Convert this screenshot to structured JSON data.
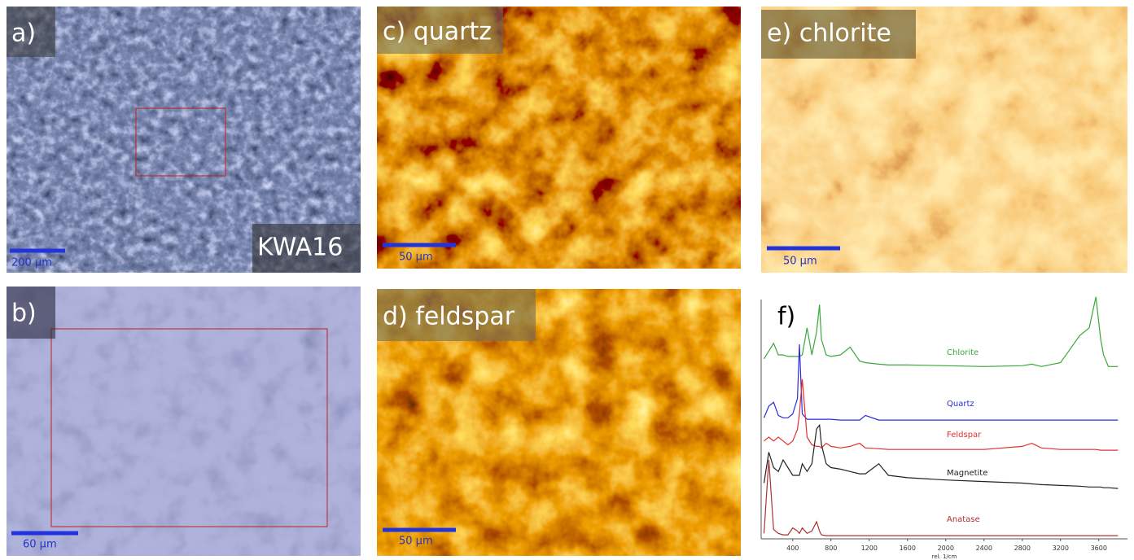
{
  "panels": [
    {
      "label": "a)",
      "sample": "KWA16",
      "scale_bar": "200 µm"
    },
    {
      "label": "b)",
      "scale_bar": "60 µm"
    },
    {
      "label": "c) quartz",
      "scale_bar": "50 µm"
    },
    {
      "label": "d) feldspar",
      "scale_bar": "50 µm"
    },
    {
      "label": "e) chlorite",
      "scale_bar": "50 µm"
    },
    {
      "label": "f)"
    }
  ],
  "chart_data": {
    "type": "line",
    "xlabel": "rel. 1/cm",
    "x": [
      100,
      150,
      200,
      250,
      300,
      350,
      400,
      450,
      470,
      500,
      550,
      600,
      650,
      680,
      700,
      750,
      800,
      900,
      1000,
      1100,
      1160,
      1300,
      1400,
      1600,
      2000,
      2400,
      2800,
      2900,
      3000,
      3200,
      3400,
      3500,
      3570,
      3620,
      3650,
      3700,
      3800
    ],
    "xlim": [
      70,
      3900
    ],
    "xticks": [
      400,
      800,
      1200,
      1600,
      2000,
      2400,
      2800,
      3200,
      3600
    ],
    "series": [
      {
        "name": "Chlorite",
        "color": "#3aa83a",
        "values": [
          0.15,
          0.25,
          0.35,
          0.2,
          0.2,
          0.18,
          0.18,
          0.18,
          0.18,
          0.2,
          0.55,
          0.2,
          0.5,
          0.85,
          0.4,
          0.2,
          0.18,
          0.2,
          0.3,
          0.12,
          0.1,
          0.08,
          0.07,
          0.07,
          0.06,
          0.05,
          0.06,
          0.08,
          0.05,
          0.1,
          0.45,
          0.55,
          0.95,
          0.4,
          0.2,
          0.05,
          0.05
        ]
      },
      {
        "name": "Quartz",
        "color": "#2b2bd8",
        "values": [
          0.05,
          0.2,
          0.25,
          0.08,
          0.05,
          0.05,
          0.1,
          0.3,
          1.0,
          0.1,
          0.03,
          0.03,
          0.03,
          0.03,
          0.03,
          0.03,
          0.03,
          0.02,
          0.02,
          0.02,
          0.08,
          0.02,
          0.02,
          0.02,
          0.02,
          0.02,
          0.02,
          0.02,
          0.02,
          0.02,
          0.02,
          0.02,
          0.02,
          0.02,
          0.02,
          0.02,
          0.02
        ]
      },
      {
        "name": "Feldspar",
        "color": "#e03030",
        "values": [
          0.15,
          0.2,
          0.15,
          0.2,
          0.15,
          0.1,
          0.15,
          0.3,
          0.5,
          0.95,
          0.2,
          0.1,
          0.08,
          0.08,
          0.06,
          0.12,
          0.08,
          0.06,
          0.08,
          0.12,
          0.06,
          0.05,
          0.04,
          0.04,
          0.04,
          0.04,
          0.08,
          0.12,
          0.06,
          0.04,
          0.04,
          0.04,
          0.04,
          0.03,
          0.03,
          0.03,
          0.03
        ]
      },
      {
        "name": "Magnetite",
        "color": "#222222",
        "values": [
          0.1,
          0.5,
          0.3,
          0.25,
          0.4,
          0.3,
          0.2,
          0.2,
          0.2,
          0.35,
          0.25,
          0.35,
          0.8,
          0.85,
          0.6,
          0.35,
          0.3,
          0.28,
          0.25,
          0.22,
          0.22,
          0.35,
          0.2,
          0.17,
          0.14,
          0.12,
          0.1,
          0.09,
          0.08,
          0.07,
          0.06,
          0.05,
          0.05,
          0.05,
          0.04,
          0.04,
          0.03
        ]
      },
      {
        "name": "Anatase",
        "color": "#a83232",
        "values": [
          0.05,
          1.0,
          0.1,
          0.05,
          0.03,
          0.03,
          0.12,
          0.08,
          0.05,
          0.12,
          0.05,
          0.08,
          0.2,
          0.08,
          0.03,
          0.02,
          0.02,
          0.02,
          0.02,
          0.02,
          0.02,
          0.02,
          0.02,
          0.02,
          0.02,
          0.02,
          0.02,
          0.02,
          0.02,
          0.02,
          0.02,
          0.02,
          0.02,
          0.02,
          0.02,
          0.02,
          0.02
        ]
      }
    ]
  }
}
